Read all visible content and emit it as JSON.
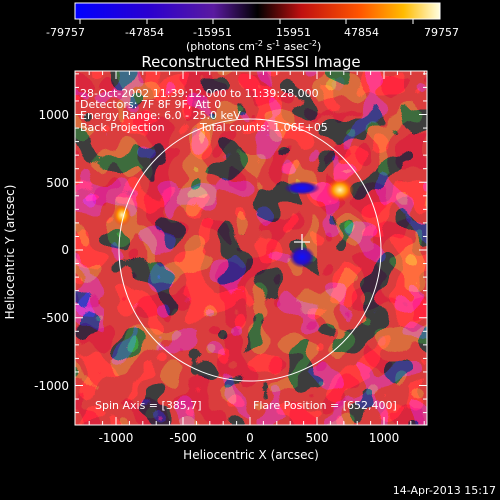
{
  "colorbar": {
    "ticks": [
      "-79757",
      "-47854",
      "-15951",
      "15951",
      "47854",
      "79757"
    ],
    "units_main": "(photons cm",
    "units_exp1": "-2",
    "units_mid": " s",
    "units_exp2": "-1",
    "units_end": " asec",
    "units_exp3": "-2",
    "units_close": ")"
  },
  "title": "Reconstructed RHESSI Image",
  "info": {
    "line1": "28-Oct-2002 11:39:12.000 to 11:39:28.000",
    "line2": "Detectors: 7F 8F 9F, Att 0",
    "line3": "Energy Range: 6.0 - 25.0 keV",
    "line4a": "Back Projection",
    "line4b": "Total counts: 1.06E+05"
  },
  "spin_axis": "Spin Axis = [385,7]",
  "flare_position": "Flare Position = [652,400]",
  "x_axis": {
    "label": "Heliocentric X (arcsec)",
    "ticks": [
      "-1000",
      "-500",
      "0",
      "500",
      "1000"
    ]
  },
  "y_axis": {
    "label": "Heliocentric Y (arcsec)",
    "ticks": [
      "1000",
      "500",
      "0",
      "-500",
      "-1000"
    ]
  },
  "timestamp": "14-Apr-2013 15:17"
}
